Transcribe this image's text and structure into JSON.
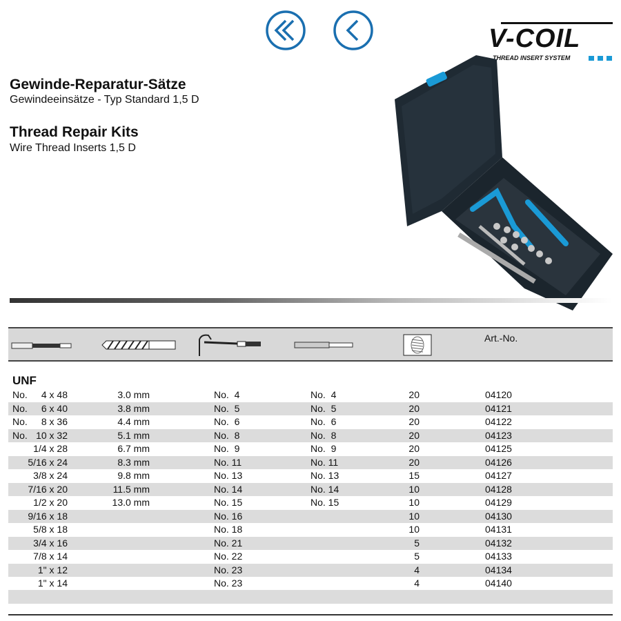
{
  "nav": {
    "first_icon": "double-chevron-left-icon",
    "prev_icon": "chevron-left-icon",
    "accent": "#1a6fb0"
  },
  "logo": {
    "text": "V-COIL",
    "tagline": "THREAD INSERT SYSTEM",
    "accent": "#1a9ad6"
  },
  "titles": {
    "de_title": "Gewinde-Reparatur-Sätze",
    "de_subtitle": "Gewindeeinsätze - Typ Standard 1,5 D",
    "en_title": "Thread Repair Kits",
    "en_subtitle": "Wire Thread Inserts 1,5 D"
  },
  "table": {
    "header_icons": [
      "tap-icon",
      "drill-bit-icon",
      "installation-tool-icon",
      "tang-break-tool-icon",
      "thread-insert-icon"
    ],
    "art_no_label": "Art.-No.",
    "section": "UNF",
    "rows": [
      {
        "prefix": "No.",
        "size": "4 x 48",
        "drill": "3.0 mm",
        "tool": "No.  4",
        "tang": "No.  4",
        "qty": "20",
        "art": "04120"
      },
      {
        "prefix": "No.",
        "size": "6 x 40",
        "drill": "3.8 mm",
        "tool": "No.  5",
        "tang": "No.  5",
        "qty": "20",
        "art": "04121"
      },
      {
        "prefix": "No.",
        "size": "8 x 36",
        "drill": "4.4 mm",
        "tool": "No.  6",
        "tang": "No.  6",
        "qty": "20",
        "art": "04122"
      },
      {
        "prefix": "No.",
        "size": "10 x 32",
        "drill": "5.1 mm",
        "tool": "No.  8",
        "tang": "No.  8",
        "qty": "20",
        "art": "04123"
      },
      {
        "prefix": "",
        "size": "1/4 x 28",
        "drill": "6.7 mm",
        "tool": "No.  9",
        "tang": "No.  9",
        "qty": "20",
        "art": "04125"
      },
      {
        "prefix": "",
        "size": "5/16 x 24",
        "drill": "8.3 mm",
        "tool": "No. 11",
        "tang": "No. 11",
        "qty": "20",
        "art": "04126"
      },
      {
        "prefix": "",
        "size": "3/8 x 24",
        "drill": "9.8 mm",
        "tool": "No. 13",
        "tang": "No. 13",
        "qty": "15",
        "art": "04127"
      },
      {
        "prefix": "",
        "size": "7/16 x 20",
        "drill": "11.5 mm",
        "tool": "No. 14",
        "tang": "No. 14",
        "qty": "10",
        "art": "04128"
      },
      {
        "prefix": "",
        "size": "1/2 x 20",
        "drill": "13.0 mm",
        "tool": "No. 15",
        "tang": "No. 15",
        "qty": "10",
        "art": "04129"
      },
      {
        "prefix": "",
        "size": "9/16 x 18",
        "drill": "",
        "tool": "No. 16",
        "tang": "",
        "qty": "10",
        "art": "04130"
      },
      {
        "prefix": "",
        "size": "5/8 x 18",
        "drill": "",
        "tool": "No. 18",
        "tang": "",
        "qty": "10",
        "art": "04131"
      },
      {
        "prefix": "",
        "size": "3/4 x 16",
        "drill": "",
        "tool": "No. 21",
        "tang": "",
        "qty": "5",
        "art": "04132"
      },
      {
        "prefix": "",
        "size": "7/8 x 14",
        "drill": "",
        "tool": "No. 22",
        "tang": "",
        "qty": "5",
        "art": "04133"
      },
      {
        "prefix": "",
        "size": "1\" x 12",
        "drill": "",
        "tool": "No. 23",
        "tang": "",
        "qty": "4",
        "art": "04134"
      },
      {
        "prefix": "",
        "size": "1\" x 14",
        "drill": "",
        "tool": "No. 23",
        "tang": "",
        "qty": "4",
        "art": "04140"
      }
    ]
  }
}
